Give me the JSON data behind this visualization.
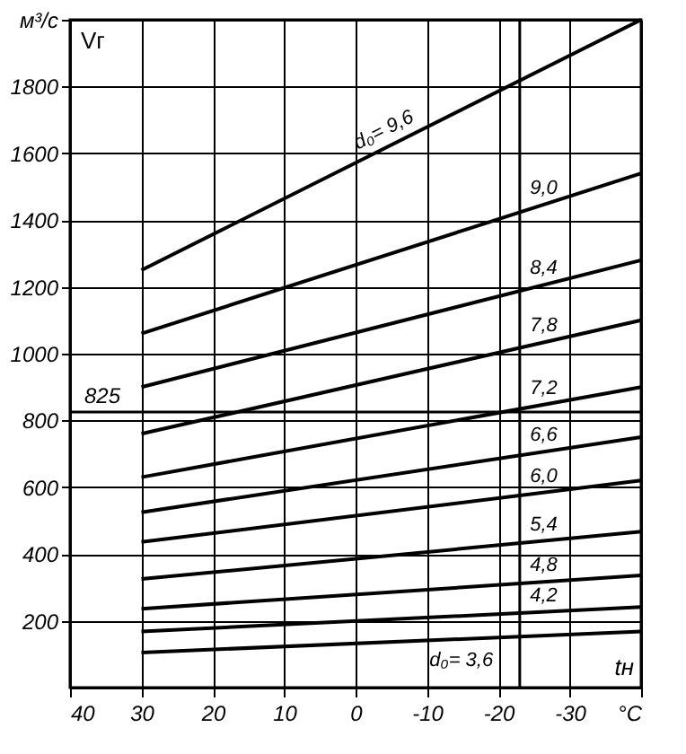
{
  "chart_data": {
    "type": "line",
    "xlabel": "tн",
    "ylabel": "Vг",
    "x": [
      30,
      -40
    ],
    "xlim": [
      40,
      -40
    ],
    "xticks": [
      40,
      30,
      20,
      10,
      0,
      -10,
      -20,
      -30,
      {
        "value": -40,
        "label": "°C"
      }
    ],
    "ylim": [
      0,
      2000
    ],
    "yticks": [
      200,
      400,
      600,
      800,
      1000,
      1200,
      1400,
      1600,
      1800,
      {
        "value": 2000,
        "label": "м³/с"
      }
    ],
    "grid": true,
    "legend": false,
    "line_style": "solid",
    "marker": "none",
    "series": [
      {
        "name": "d₀= 9,6",
        "color": "#000000",
        "values": [
          1250,
          2000
        ]
      },
      {
        "name": "9,0",
        "color": "#000000",
        "values": [
          1060,
          1540
        ]
      },
      {
        "name": "8,4",
        "color": "#000000",
        "values": [
          900,
          1280
        ]
      },
      {
        "name": "7,8",
        "color": "#000000",
        "values": [
          760,
          1100
        ]
      },
      {
        "name": "7,2",
        "color": "#000000",
        "values": [
          630,
          900
        ]
      },
      {
        "name": "6,6",
        "color": "#000000",
        "values": [
          525,
          750
        ]
      },
      {
        "name": "6,0",
        "color": "#000000",
        "values": [
          436,
          620
        ]
      },
      {
        "name": "5,4",
        "color": "#000000",
        "values": [
          325,
          467
        ]
      },
      {
        "name": "4,8",
        "color": "#000000",
        "values": [
          236,
          336
        ]
      },
      {
        "name": "4,2",
        "color": "#000000",
        "values": [
          168,
          241
        ]
      },
      {
        "name": "d₀= 3,6",
        "color": "#000000",
        "values": [
          105,
          168
        ]
      }
    ],
    "ref_lines": [
      {
        "axis": "y",
        "value": 825,
        "label": "825",
        "color": "#000000"
      },
      {
        "axis": "x",
        "value": -23,
        "color": "#000000"
      }
    ]
  }
}
